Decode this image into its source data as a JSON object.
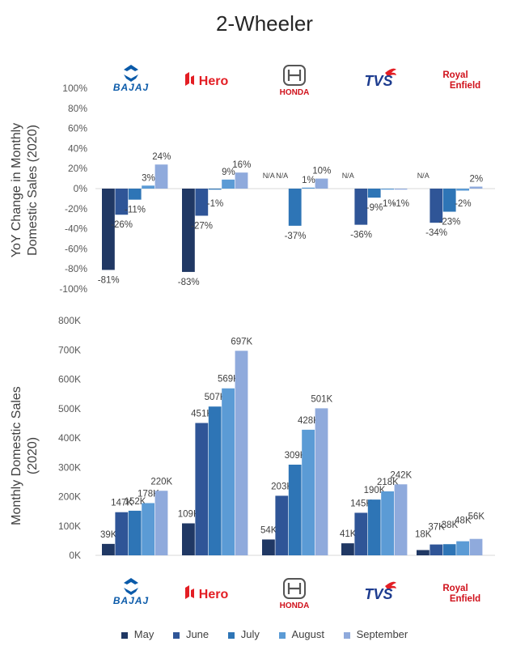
{
  "title": "2-Wheeler",
  "colors": {
    "May": "#203864",
    "June": "#2f5597",
    "July": "#2e75b6",
    "August": "#5b9bd5",
    "September": "#8faadc",
    "bajaj": "#0a5aa9",
    "hero": "#e31e24",
    "honda": "#d0111b",
    "tvs": "#1d3c8f",
    "royal_enfield": "#d0111b"
  },
  "brands": [
    {
      "name": "BAJAJ",
      "key": "bajaj",
      "icon": "bajaj-logo-icon"
    },
    {
      "name": "Hero",
      "key": "hero",
      "icon": "hero-logo-icon"
    },
    {
      "name": "HONDA",
      "key": "honda",
      "icon": "honda-logo-icon"
    },
    {
      "name": "TVS",
      "key": "tvs",
      "icon": "tvs-logo-icon"
    },
    {
      "name_line1": "Royal",
      "name_line2": "Enfield",
      "key": "royal_enfield",
      "icon": "royal-enfield-logo-icon"
    }
  ],
  "legend": [
    "May",
    "June",
    "July",
    "August",
    "September"
  ],
  "chart_data": [
    {
      "type": "bar",
      "ylabel_line1": "YoY Change in Monthly",
      "ylabel_line2": "Domestic Sales (2020)",
      "ylim": [
        -100,
        100
      ],
      "yticks": [
        "100%",
        "80%",
        "60%",
        "40%",
        "20%",
        "0%",
        "-20%",
        "-40%",
        "-60%",
        "-80%",
        "-100%"
      ],
      "categories": [
        "Bajaj",
        "Hero",
        "Honda",
        "TVS",
        "Royal Enfield"
      ],
      "series": [
        {
          "name": "May",
          "values": [
            -81,
            -83,
            null,
            null,
            null
          ],
          "labels": [
            "-81%",
            "-83%",
            "N/A",
            "N/A",
            "N/A"
          ]
        },
        {
          "name": "June",
          "values": [
            -26,
            -27,
            null,
            -36,
            -34
          ],
          "labels": [
            "-26%",
            "-27%",
            "N/A",
            "-36%",
            "-34%"
          ]
        },
        {
          "name": "July",
          "values": [
            -11,
            -1,
            -37,
            -9,
            -23
          ],
          "labels": [
            "-11%",
            "-1%",
            "-37%",
            "-9%",
            "-23%"
          ]
        },
        {
          "name": "August",
          "values": [
            3,
            9,
            1,
            -1,
            -2
          ],
          "labels": [
            "3%",
            "9%",
            "1%",
            "-1%",
            "-2%"
          ]
        },
        {
          "name": "September",
          "values": [
            24,
            16,
            10,
            -1,
            2
          ],
          "labels": [
            "24%",
            "16%",
            "10%",
            "-1%",
            "2%"
          ]
        }
      ]
    },
    {
      "type": "bar",
      "ylabel_line1": "Monthly Domestic Sales",
      "ylabel_line2": "(2020)",
      "ylim": [
        0,
        800000
      ],
      "yticks": [
        "800K",
        "700K",
        "600K",
        "500K",
        "400K",
        "300K",
        "200K",
        "100K",
        "0K"
      ],
      "categories": [
        "Bajaj",
        "Hero",
        "Honda",
        "TVS",
        "Royal Enfield"
      ],
      "series": [
        {
          "name": "May",
          "values": [
            39000,
            109000,
            54000,
            41000,
            18000
          ],
          "labels": [
            "39K",
            "109K",
            "54K",
            "41K",
            "18K"
          ]
        },
        {
          "name": "June",
          "values": [
            147000,
            451000,
            203000,
            145000,
            37000
          ],
          "labels": [
            "147K",
            "451K",
            "203K",
            "145K",
            "37K"
          ]
        },
        {
          "name": "July",
          "values": [
            152000,
            507000,
            309000,
            190000,
            38000
          ],
          "labels": [
            "152K",
            "507K",
            "309K",
            "190K",
            "38K"
          ]
        },
        {
          "name": "August",
          "values": [
            178000,
            569000,
            428000,
            218000,
            48000
          ],
          "labels": [
            "178K",
            "569K",
            "428K",
            "218K",
            "48K"
          ]
        },
        {
          "name": "September",
          "values": [
            220000,
            697000,
            501000,
            242000,
            56000
          ],
          "labels": [
            "220K",
            "697K",
            "501K",
            "242K",
            "56K"
          ]
        }
      ]
    }
  ]
}
